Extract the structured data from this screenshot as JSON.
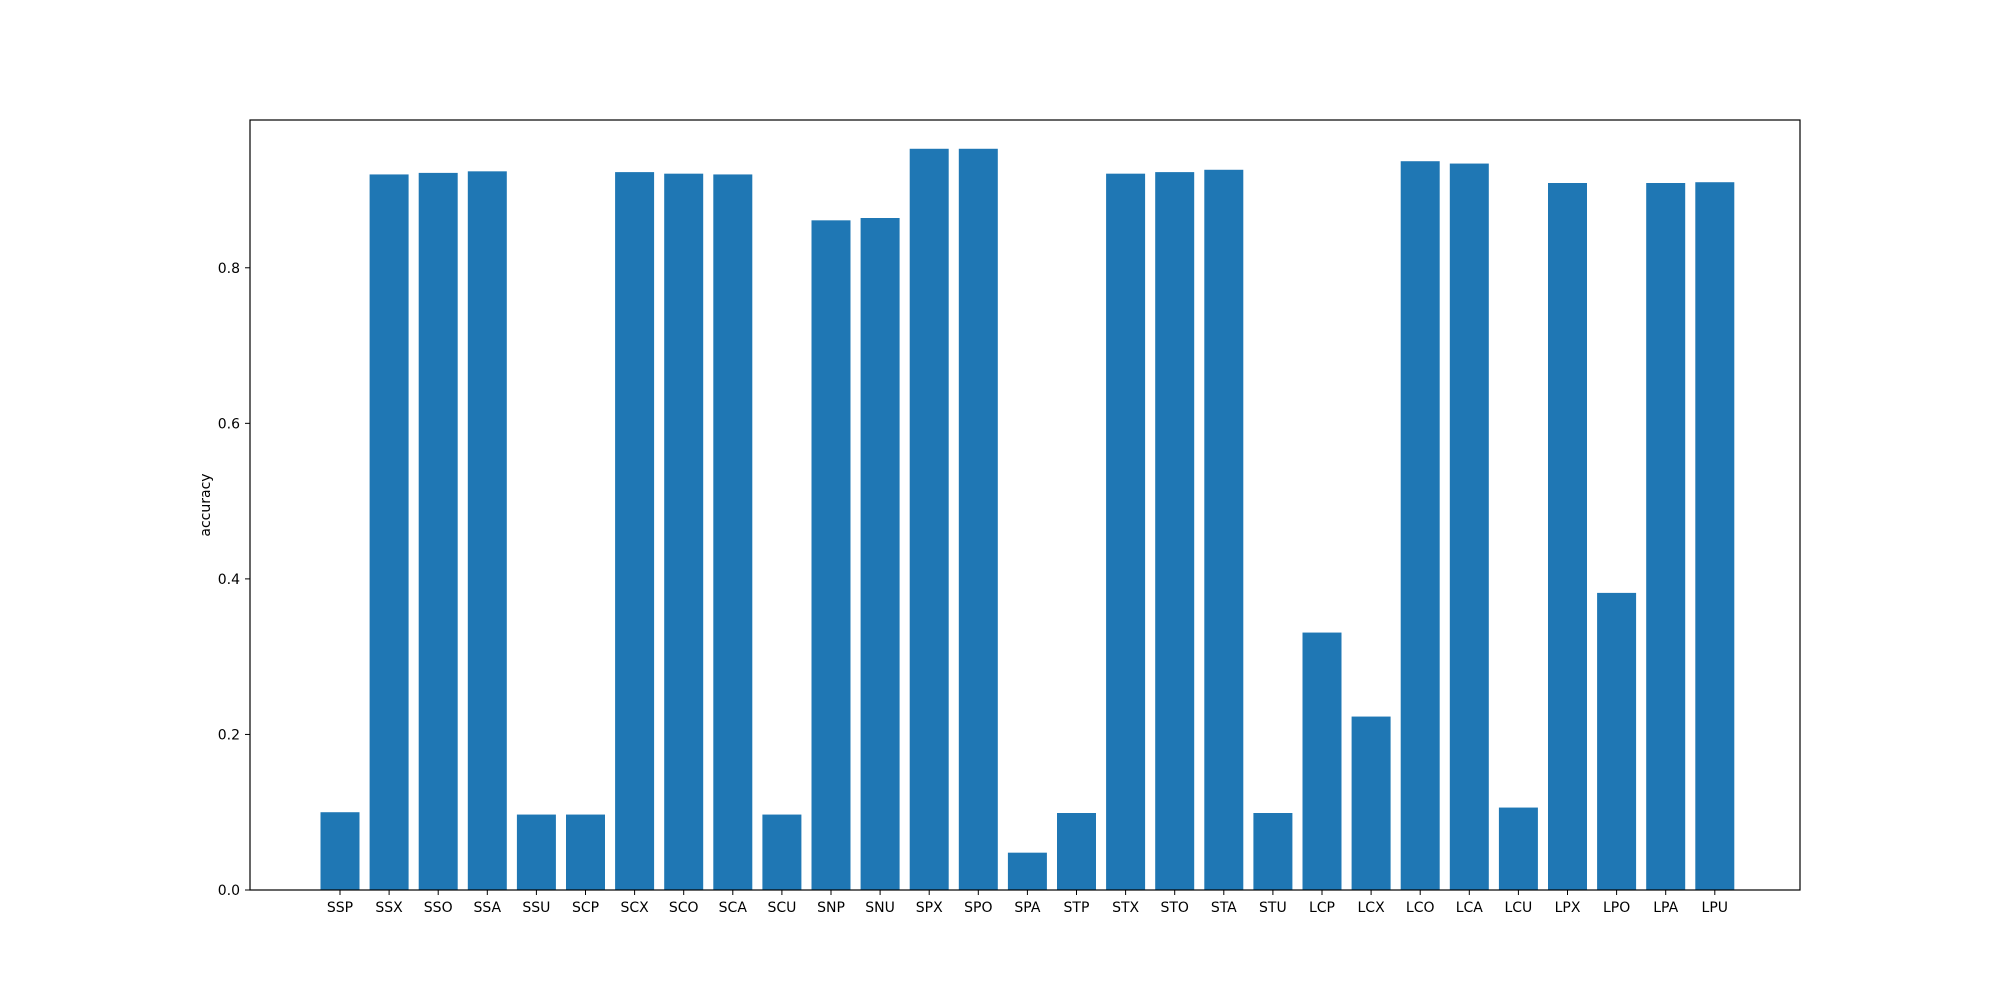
{
  "chart_data": {
    "type": "bar",
    "title": "",
    "xlabel": "",
    "ylabel": "accuracy",
    "categories": [
      "SSP",
      "SSX",
      "SSO",
      "SSA",
      "SSU",
      "SCP",
      "SCX",
      "SCO",
      "SCA",
      "SCU",
      "SNP",
      "SNU",
      "SPX",
      "SPO",
      "SPA",
      "STP",
      "STX",
      "STO",
      "STA",
      "STU",
      "LCP",
      "LCX",
      "LCO",
      "LCA",
      "LCU",
      "LPX",
      "LPO",
      "LPA",
      "LPU"
    ],
    "values": [
      0.1,
      0.92,
      0.922,
      0.924,
      0.097,
      0.097,
      0.923,
      0.921,
      0.92,
      0.097,
      0.861,
      0.864,
      0.953,
      0.953,
      0.048,
      0.099,
      0.921,
      0.923,
      0.926,
      0.099,
      0.331,
      0.223,
      0.937,
      0.934,
      0.106,
      0.909,
      0.382,
      0.909,
      0.91
    ],
    "ylim": [
      0,
      0.99
    ],
    "yticks": [
      0.0,
      0.2,
      0.4,
      0.6,
      0.8
    ],
    "ytick_labels": [
      "0.0",
      "0.2",
      "0.4",
      "0.6",
      "0.8"
    ],
    "grid": false,
    "legend": "none",
    "bar_color": "#1f77b4"
  }
}
